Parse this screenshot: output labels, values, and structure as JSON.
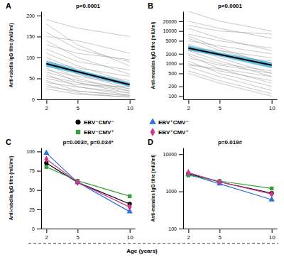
{
  "chart_data": [
    {
      "type": "line",
      "title": "A",
      "annotations": [
        "p<0.0001"
      ],
      "ylabel": "Anti-rubella IgG titre (mIU/ml)",
      "x": [
        2,
        5,
        10
      ],
      "xlim": [
        1.5,
        10.5
      ],
      "xticks": [
        2,
        5,
        10
      ],
      "ylim": [
        0,
        210
      ],
      "yticks": [
        0,
        50,
        100,
        150,
        200
      ],
      "series": [
        {
          "color": "#8c8c8c",
          "values": [
            190,
            170,
            150
          ]
        },
        {
          "color": "#8c8c8c",
          "values": [
            160,
            120,
            90
          ]
        },
        {
          "color": "#8c8c8c",
          "values": [
            140,
            100,
            60
          ]
        },
        {
          "color": "#8c8c8c",
          "values": [
            120,
            90,
            70
          ]
        },
        {
          "color": "#8c8c8c",
          "values": [
            110,
            80,
            40
          ]
        },
        {
          "color": "#8c8c8c",
          "values": [
            100,
            70,
            30
          ]
        },
        {
          "color": "#8c8c8c",
          "values": [
            95,
            60,
            25
          ]
        },
        {
          "color": "#8c8c8c",
          "values": [
            90,
            75,
            55
          ]
        },
        {
          "color": "#8c8c8c",
          "values": [
            85,
            50,
            20
          ]
        },
        {
          "color": "#8c8c8c",
          "values": [
            80,
            65,
            45
          ]
        },
        {
          "color": "#8c8c8c",
          "values": [
            75,
            40,
            15
          ]
        },
        {
          "color": "#8c8c8c",
          "values": [
            70,
            55,
            35
          ]
        },
        {
          "color": "#8c8c8c",
          "values": [
            65,
            45,
            25
          ]
        },
        {
          "color": "#8c8c8c",
          "values": [
            60,
            30,
            10
          ]
        },
        {
          "color": "#8c8c8c",
          "values": [
            55,
            40,
            20
          ]
        },
        {
          "color": "#8c8c8c",
          "values": [
            50,
            35,
            30
          ]
        },
        {
          "color": "#8c8c8c",
          "values": [
            45,
            20,
            8
          ]
        },
        {
          "color": "#8c8c8c",
          "values": [
            40,
            30,
            15
          ]
        },
        {
          "color": "#8c8c8c",
          "values": [
            35,
            15,
            5
          ]
        },
        {
          "color": "#8c8c8c",
          "values": [
            30,
            20,
            10
          ]
        },
        {
          "color": "#8c8c8c",
          "values": [
            25,
            12,
            6
          ]
        },
        {
          "color": "#8c8c8c",
          "values": [
            150,
            140,
            110
          ]
        },
        {
          "color": "#8c8c8c",
          "values": [
            180,
            130,
            80
          ]
        },
        {
          "color": "#8c8c8c",
          "values": [
            130,
            110,
            95
          ]
        },
        {
          "color": "#000000",
          "values": [
            85,
            66,
            35
          ],
          "ci_lower": [
            78,
            61,
            30
          ],
          "ci_upper": [
            92,
            71,
            40
          ]
        }
      ]
    },
    {
      "type": "line",
      "title": "B",
      "annotations": [
        "p<0.0001"
      ],
      "log": "y",
      "ylabel": "Anti-measles IgG titre (mIU/ml)",
      "x": [
        2,
        5,
        10
      ],
      "xlim": [
        1.5,
        10.5
      ],
      "xticks": [
        2,
        5,
        10
      ],
      "ylim": [
        80,
        40000
      ],
      "yticks": [
        100,
        200,
        500,
        1000,
        2000,
        5000,
        10000,
        20000
      ],
      "series": [
        {
          "color": "#8c8c8c",
          "values": [
            40000,
            20000,
            10000
          ]
        },
        {
          "color": "#8c8c8c",
          "values": [
            20000,
            12000,
            6000
          ]
        },
        {
          "color": "#8c8c8c",
          "values": [
            12000,
            6000,
            2500
          ]
        },
        {
          "color": "#8c8c8c",
          "values": [
            8000,
            5000,
            3000
          ]
        },
        {
          "color": "#8c8c8c",
          "values": [
            6000,
            2500,
            1000
          ]
        },
        {
          "color": "#8c8c8c",
          "values": [
            5000,
            3500,
            2000
          ]
        },
        {
          "color": "#8c8c8c",
          "values": [
            4000,
            2000,
            800
          ]
        },
        {
          "color": "#8c8c8c",
          "values": [
            3500,
            1500,
            500
          ]
        },
        {
          "color": "#8c8c8c",
          "values": [
            3000,
            2500,
            1500
          ]
        },
        {
          "color": "#8c8c8c",
          "values": [
            2500,
            1200,
            400
          ]
        },
        {
          "color": "#8c8c8c",
          "values": [
            2000,
            1000,
            600
          ]
        },
        {
          "color": "#8c8c8c",
          "values": [
            1800,
            700,
            250
          ]
        },
        {
          "color": "#8c8c8c",
          "values": [
            1500,
            900,
            500
          ]
        },
        {
          "color": "#8c8c8c",
          "values": [
            1200,
            500,
            200
          ]
        },
        {
          "color": "#8c8c8c",
          "values": [
            1000,
            600,
            300
          ]
        },
        {
          "color": "#8c8c8c",
          "values": [
            800,
            400,
            150
          ]
        },
        {
          "color": "#8c8c8c",
          "values": [
            600,
            300,
            120
          ]
        },
        {
          "color": "#8c8c8c",
          "values": [
            500,
            250,
            100
          ]
        },
        {
          "color": "#8c8c8c",
          "values": [
            15000,
            10000,
            8000
          ]
        },
        {
          "color": "#8c8c8c",
          "values": [
            7000,
            3000,
            900
          ]
        },
        {
          "color": "#8c8c8c",
          "values": [
            2800,
            1800,
            1200
          ]
        },
        {
          "color": "#8c8c8c",
          "values": [
            900,
            700,
            400
          ]
        },
        {
          "color": "#000000",
          "values": [
            3000,
            1900,
            900
          ],
          "ci_lower": [
            2500,
            1650,
            720
          ],
          "ci_upper": [
            3600,
            2200,
            1100
          ]
        }
      ]
    },
    {
      "type": "line",
      "title": "C",
      "annotations": [
        "p=0.003#, p=0.034*"
      ],
      "legend": "top",
      "ylabel": "Anti-rubella IgG titre (mIU/ml)",
      "x": [
        2,
        5,
        10
      ],
      "xlim": [
        1.5,
        10.5
      ],
      "xticks": [
        2,
        5,
        10
      ],
      "ylim": [
        0,
        105
      ],
      "yticks": [
        0,
        25,
        50,
        75,
        100
      ],
      "series": [
        {
          "name": "EBV⁻CMV⁻",
          "color": "#000000",
          "marker": "circle",
          "values": [
            85,
            60,
            32
          ]
        },
        {
          "name": "EBV⁺CMV⁻",
          "color": "#2a6fdb",
          "marker": "triangle",
          "values": [
            98,
            60,
            22
          ]
        },
        {
          "name": "EBV⁻CMV⁺",
          "color": "#3a9d3a",
          "marker": "square",
          "values": [
            80,
            62,
            42
          ]
        },
        {
          "name": "EBV⁺CMV⁺",
          "color": "#d1358f",
          "marker": "diamond",
          "values": [
            90,
            60,
            28
          ]
        }
      ]
    },
    {
      "type": "line",
      "title": "D",
      "annotations": [
        "p=0.019#"
      ],
      "log": "y",
      "ylabel": "Anti-measles IgG titre (mIU/ml)",
      "xlabel": "Age (years)",
      "x": [
        2,
        5,
        10
      ],
      "xlim": [
        1.5,
        10.5
      ],
      "xticks": [
        2,
        5,
        10
      ],
      "ylim": [
        100,
        15000
      ],
      "yticks": [
        100,
        1000,
        10000
      ],
      "series": [
        {
          "color": "#000000",
          "marker": "circle",
          "values": [
            3000,
            1800,
            900
          ]
        },
        {
          "color": "#2a6fdb",
          "marker": "triangle",
          "values": [
            2900,
            1600,
            600
          ]
        },
        {
          "color": "#3a9d3a",
          "marker": "square",
          "values": [
            2700,
            1900,
            1200
          ]
        },
        {
          "color": "#d1358f",
          "marker": "diamond",
          "values": [
            3200,
            1800,
            850
          ]
        }
      ]
    }
  ]
}
